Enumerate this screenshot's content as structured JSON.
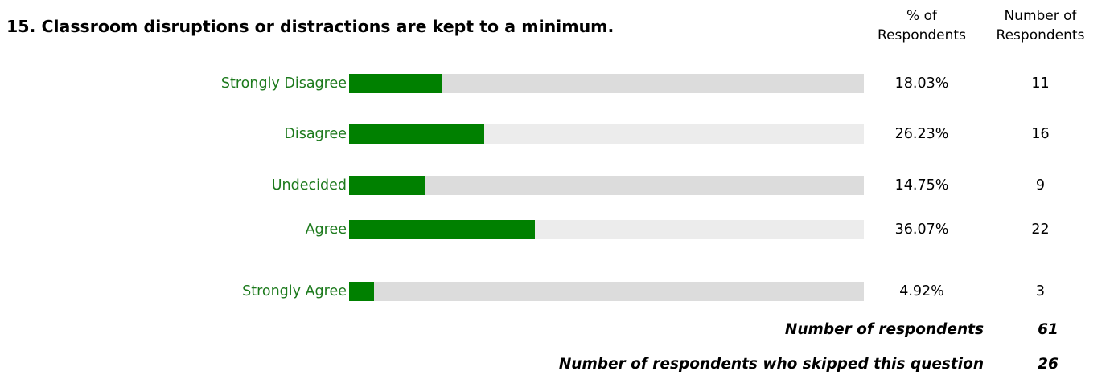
{
  "question": {
    "title": "15. Classroom disruptions or distractions are kept to a minimum."
  },
  "columns": {
    "percent_line1": "% of",
    "percent_line2": "Respondents",
    "number_line1": "Number of",
    "number_line2": "Respondents"
  },
  "colors": {
    "bar_fill": "#008000",
    "track_a": "#dcdcdc",
    "track_b": "#ececec",
    "label": "#1d7a1d"
  },
  "chart_data": {
    "type": "bar",
    "orientation": "horizontal",
    "categories": [
      "Strongly Disagree",
      "Disagree",
      "Undecided",
      "Agree",
      "Strongly Agree"
    ],
    "values": [
      18.03,
      26.23,
      14.75,
      36.07,
      4.92
    ],
    "percent_labels": [
      "18.03%",
      "26.23%",
      "14.75%",
      "36.07%",
      "4.92%"
    ],
    "counts": [
      "11",
      "16",
      "9",
      "22",
      "3"
    ],
    "xlim": [
      0,
      100
    ],
    "xlabel": "",
    "ylabel": ""
  },
  "summary": {
    "respondents_label": "Number of respondents",
    "respondents_value": "61",
    "skipped_label": "Number of respondents who skipped this question",
    "skipped_value": "26"
  }
}
